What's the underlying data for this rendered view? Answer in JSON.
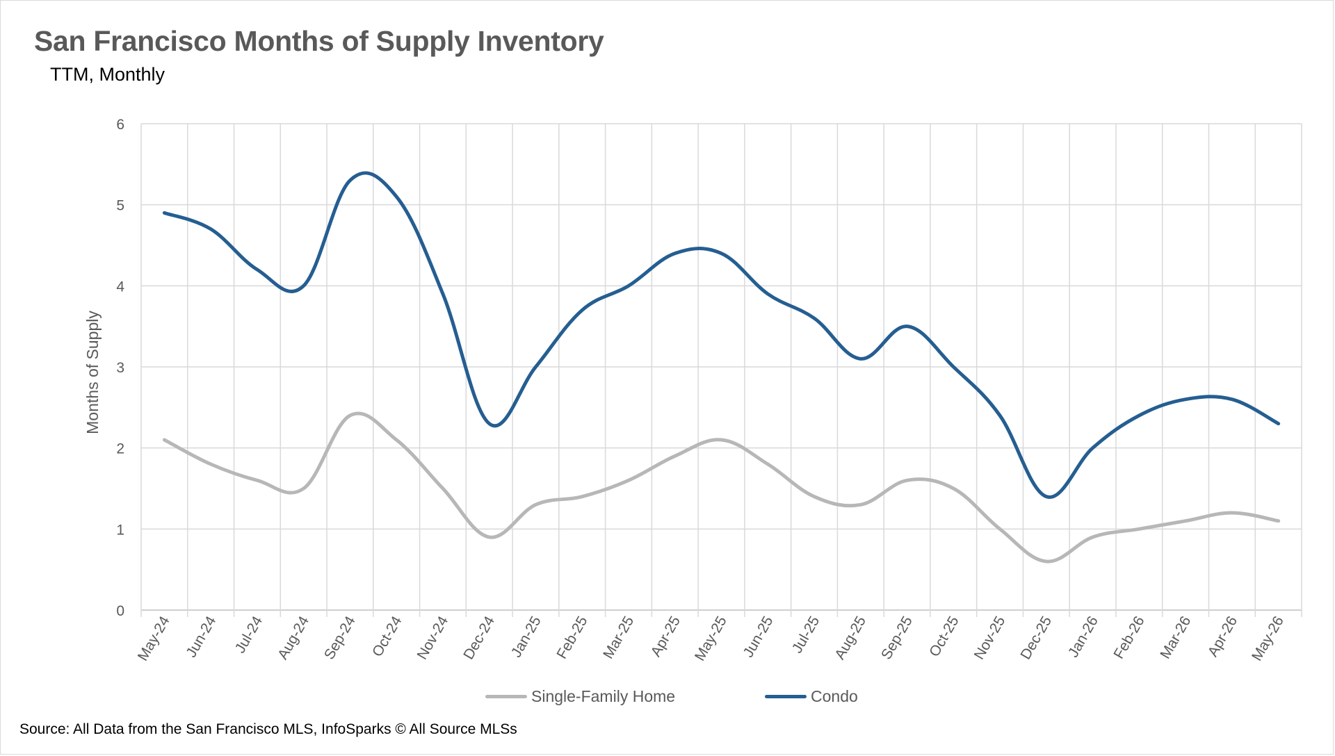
{
  "title": "San Francisco Months of Supply Inventory",
  "subtitle": "TTM, Monthly",
  "source": "Source: All Data from the San Francisco MLS, InfoSparks © All Source MLSs",
  "chart_data": {
    "type": "line",
    "title": "San Francisco Months of Supply Inventory",
    "subtitle": "TTM, Monthly",
    "xlabel": "",
    "ylabel": "Months of Supply",
    "ylim": [
      0,
      6
    ],
    "yticks": [
      "0",
      "1",
      "2",
      "3",
      "4",
      "5",
      "6"
    ],
    "grid": true,
    "legend": "bottom",
    "categories": [
      "May-24",
      "Jun-24",
      "Jul-24",
      "Aug-24",
      "Sep-24",
      "Oct-24",
      "Nov-24",
      "Dec-24",
      "Jan-25",
      "Feb-25",
      "Mar-25",
      "Apr-25",
      "May-25",
      "Jun-25",
      "Jul-25",
      "Aug-25",
      "Sep-25",
      "Oct-25",
      "Nov-25",
      "Dec-25",
      "Jan-26",
      "Feb-26",
      "Mar-26",
      "Apr-26",
      "May-26"
    ],
    "series": [
      {
        "name": "Single-Family Home",
        "color": "#b7b7b7",
        "values": [
          2.1,
          1.8,
          1.6,
          1.5,
          2.4,
          2.1,
          1.5,
          0.9,
          1.3,
          1.4,
          1.6,
          1.9,
          2.1,
          1.8,
          1.4,
          1.3,
          1.6,
          1.5,
          1.0,
          0.6,
          0.9,
          1.0,
          1.1,
          1.2,
          1.1
        ]
      },
      {
        "name": "Condo",
        "color": "#255e91",
        "values": [
          4.9,
          4.7,
          4.2,
          4.0,
          5.3,
          5.1,
          3.9,
          2.3,
          3.0,
          3.7,
          4.0,
          4.4,
          4.4,
          3.9,
          3.6,
          3.1,
          3.5,
          3.0,
          2.4,
          1.4,
          2.0,
          2.4,
          2.6,
          2.6,
          2.3
        ]
      }
    ]
  }
}
